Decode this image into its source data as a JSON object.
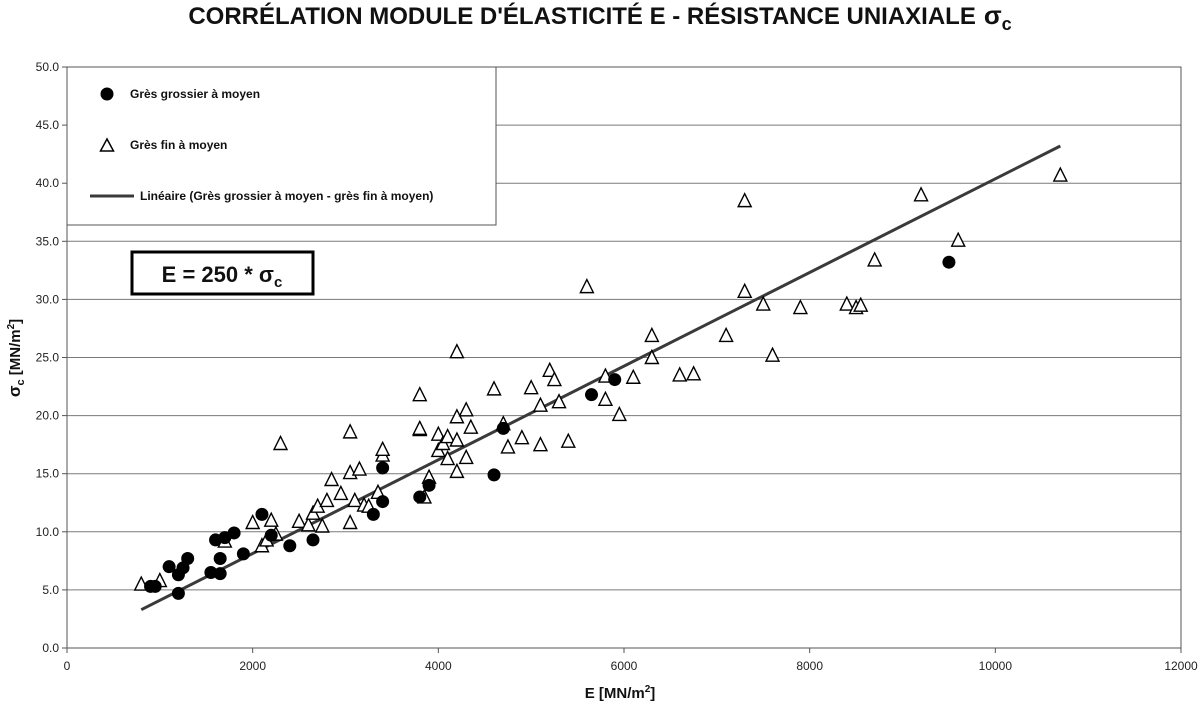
{
  "chart_data": {
    "type": "scatter",
    "title": "CORRÉLATION MODULE D'ÉLASTICITÉ  E   -   RÉSISTANCE UNIAXIALE",
    "title_symbol": "σ",
    "title_symbol_sub": "c",
    "xlabel": "E  [MN/m",
    "xlabel_sup": "2",
    "xlabel_end": "]",
    "ylabel_symbol": "σ",
    "ylabel_sub": "c",
    "ylabel_rest": " [MN/m",
    "ylabel_sup": "2",
    "ylabel_end": "]",
    "xlim": [
      0,
      12000
    ],
    "ylim": [
      0,
      50
    ],
    "x_ticks": [
      0,
      2000,
      4000,
      6000,
      8000,
      10000,
      12000
    ],
    "y_ticks": [
      "0.0",
      "5.0",
      "10.0",
      "15.0",
      "20.0",
      "25.0",
      "30.0",
      "35.0",
      "40.0",
      "45.0",
      "50.0"
    ],
    "grid": "horizontal",
    "legend_position": "top-left",
    "equation": "E = 250 * σ",
    "equation_sub": "c",
    "series": [
      {
        "name": "Grès grossier à moyen",
        "marker": "filled-circle",
        "color": "#000000",
        "points": [
          [
            900,
            5.3
          ],
          [
            950,
            5.3
          ],
          [
            1100,
            7.0
          ],
          [
            1200,
            6.3
          ],
          [
            1200,
            4.7
          ],
          [
            1250,
            6.9
          ],
          [
            1300,
            7.7
          ],
          [
            1550,
            6.5
          ],
          [
            1600,
            9.3
          ],
          [
            1650,
            7.7
          ],
          [
            1650,
            6.4
          ],
          [
            1700,
            9.5
          ],
          [
            1800,
            9.9
          ],
          [
            1900,
            8.1
          ],
          [
            2100,
            11.5
          ],
          [
            2200,
            9.7
          ],
          [
            2400,
            8.8
          ],
          [
            2650,
            9.3
          ],
          [
            3300,
            11.5
          ],
          [
            3400,
            12.6
          ],
          [
            3400,
            15.5
          ],
          [
            3800,
            13.0
          ],
          [
            3900,
            14.0
          ],
          [
            4600,
            14.9
          ],
          [
            4700,
            18.9
          ],
          [
            5650,
            21.8
          ],
          [
            5900,
            23.1
          ],
          [
            9500,
            33.2
          ]
        ]
      },
      {
        "name": "Grès fin à moyen",
        "marker": "open-triangle",
        "color": "#000000",
        "points": [
          [
            800,
            5.5
          ],
          [
            1000,
            5.8
          ],
          [
            1700,
            9.2
          ],
          [
            2000,
            10.8
          ],
          [
            2100,
            8.8
          ],
          [
            2150,
            9.3
          ],
          [
            2200,
            11.0
          ],
          [
            2250,
            9.8
          ],
          [
            2300,
            17.6
          ],
          [
            2500,
            10.9
          ],
          [
            2600,
            10.6
          ],
          [
            2650,
            11.6
          ],
          [
            2700,
            12.2
          ],
          [
            2750,
            10.5
          ],
          [
            2800,
            12.7
          ],
          [
            2850,
            14.5
          ],
          [
            2950,
            13.3
          ],
          [
            3050,
            10.8
          ],
          [
            3050,
            15.1
          ],
          [
            3050,
            18.6
          ],
          [
            3100,
            12.7
          ],
          [
            3150,
            15.4
          ],
          [
            3200,
            12.3
          ],
          [
            3250,
            12.2
          ],
          [
            3350,
            13.4
          ],
          [
            3400,
            16.6
          ],
          [
            3400,
            17.1
          ],
          [
            3800,
            18.8
          ],
          [
            3800,
            18.9
          ],
          [
            3800,
            21.8
          ],
          [
            3850,
            13.0
          ],
          [
            3900,
            14.7
          ],
          [
            4000,
            17.0
          ],
          [
            4000,
            18.4
          ],
          [
            4050,
            17.6
          ],
          [
            4100,
            16.3
          ],
          [
            4100,
            18.2
          ],
          [
            4200,
            15.2
          ],
          [
            4200,
            17.9
          ],
          [
            4200,
            19.9
          ],
          [
            4200,
            25.5
          ],
          [
            4300,
            16.4
          ],
          [
            4300,
            20.5
          ],
          [
            4350,
            19.0
          ],
          [
            4600,
            22.3
          ],
          [
            4700,
            19.3
          ],
          [
            4750,
            17.3
          ],
          [
            4900,
            18.1
          ],
          [
            5000,
            22.4
          ],
          [
            5100,
            17.5
          ],
          [
            5100,
            20.9
          ],
          [
            5200,
            23.9
          ],
          [
            5250,
            23.1
          ],
          [
            5300,
            21.2
          ],
          [
            5400,
            17.8
          ],
          [
            5600,
            31.1
          ],
          [
            5800,
            21.4
          ],
          [
            5800,
            23.4
          ],
          [
            5950,
            20.1
          ],
          [
            6100,
            23.3
          ],
          [
            6300,
            25.0
          ],
          [
            6300,
            26.9
          ],
          [
            6600,
            23.5
          ],
          [
            6750,
            23.6
          ],
          [
            7100,
            26.9
          ],
          [
            7300,
            30.7
          ],
          [
            7300,
            38.5
          ],
          [
            7500,
            29.6
          ],
          [
            7600,
            25.2
          ],
          [
            7900,
            29.3
          ],
          [
            8400,
            29.6
          ],
          [
            8500,
            29.3
          ],
          [
            8550,
            29.5
          ],
          [
            8700,
            33.4
          ],
          [
            9200,
            39.0
          ],
          [
            9600,
            35.1
          ],
          [
            10700,
            40.7
          ]
        ]
      }
    ],
    "trendline": {
      "name": "Linéaire (Grès grossier à moyen  -  grès fin à moyen)",
      "color": "#3a3a3a",
      "x": [
        800,
        10700
      ],
      "y": [
        3.3,
        43.2
      ]
    }
  }
}
